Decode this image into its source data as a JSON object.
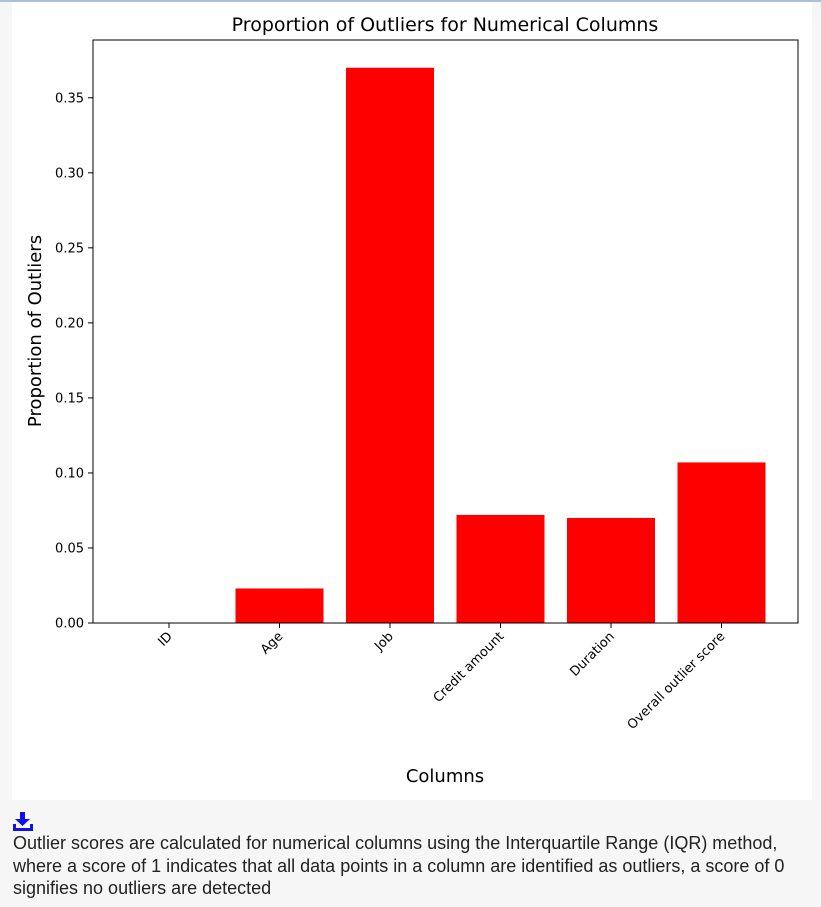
{
  "chart_data": {
    "type": "bar",
    "title": "Proportion of Outliers for Numerical Columns",
    "xlabel": "Columns",
    "ylabel": "Proportion of Outliers",
    "categories": [
      "ID",
      "Age",
      "Job",
      "Credit amount",
      "Duration",
      "Overall outlier score"
    ],
    "values": [
      0.0,
      0.023,
      0.37,
      0.072,
      0.07,
      0.107
    ],
    "ylim": [
      0,
      0.3885
    ],
    "yticks": [
      0.0,
      0.05,
      0.1,
      0.15,
      0.2,
      0.25,
      0.3,
      0.35
    ],
    "ytick_labels": [
      "0.00",
      "0.05",
      "0.10",
      "0.15",
      "0.20",
      "0.25",
      "0.30",
      "0.35"
    ],
    "bar_color": "#ff0000",
    "grid": false,
    "legend": "none"
  },
  "footer": {
    "download_icon": "download-icon",
    "icon_color": "#1010e8",
    "note": "Outlier scores are calculated for numerical columns using the Interquartile Range (IQR) method, where a score of 1 indicates that all data points in a column are identified as outliers, a score of 0 signifies no outliers are detected"
  }
}
